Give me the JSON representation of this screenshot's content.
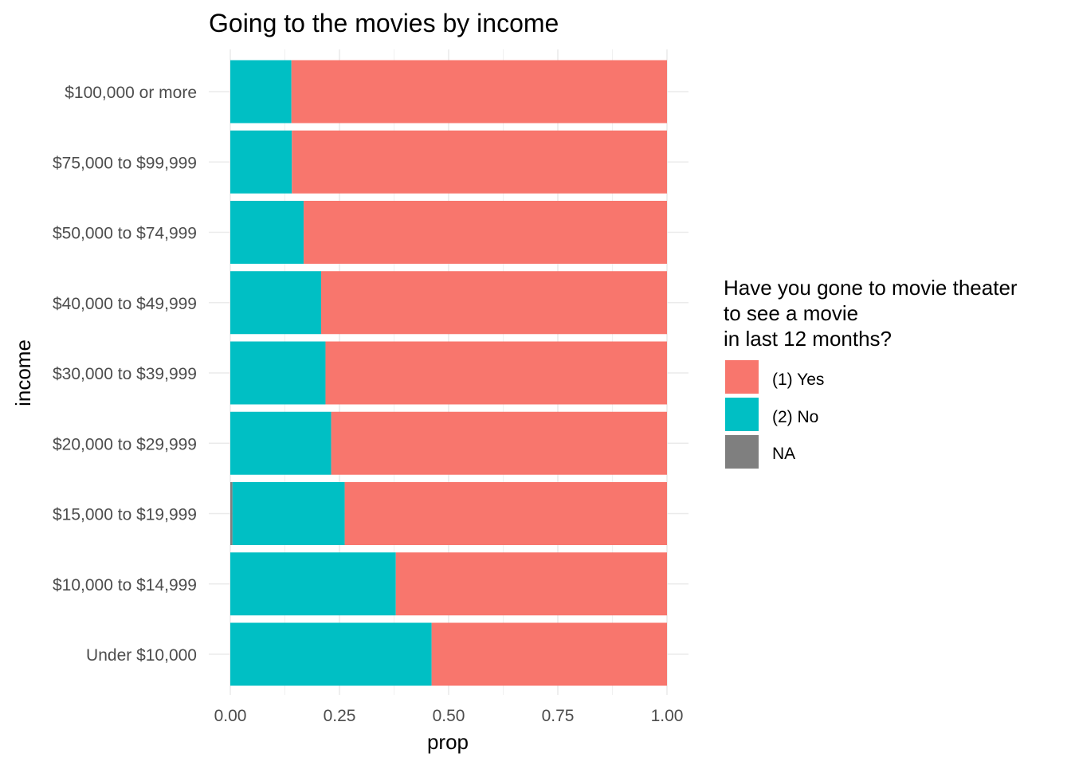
{
  "chart_data": {
    "type": "bar",
    "orientation": "horizontal",
    "stacked": true,
    "title": "Going to the movies by income",
    "xlabel": "prop",
    "ylabel": "income",
    "xlim": [
      0,
      1
    ],
    "xticks": [
      "0.00",
      "0.25",
      "0.50",
      "0.75",
      "1.00"
    ],
    "xtick_values": [
      0,
      0.25,
      0.5,
      0.75,
      1.0
    ],
    "grid": true,
    "categories": [
      "$100,000 or more",
      "$75,000 to $99,999",
      "$50,000 to $74,999",
      "$40,000 to $49,999",
      "$30,000 to $39,999",
      "$20,000 to $29,999",
      "$15,000 to $19,999",
      "$10,000 to $14,999",
      "Under $10,000"
    ],
    "series": [
      {
        "name": "NA",
        "color": "#7f7f7f",
        "values": [
          0.0,
          0.0,
          0.0,
          0.0,
          0.0,
          0.0,
          0.005,
          0.0,
          0.0
        ]
      },
      {
        "name": "(2) No",
        "color": "#00bfc4",
        "values": [
          0.14,
          0.141,
          0.168,
          0.208,
          0.218,
          0.231,
          0.257,
          0.379,
          0.461
        ]
      },
      {
        "name": "(1) Yes",
        "color": "#f8766d",
        "values": [
          0.86,
          0.859,
          0.832,
          0.792,
          0.782,
          0.769,
          0.738,
          0.621,
          0.539
        ]
      }
    ],
    "legend": {
      "title_lines": [
        "Have you gone to movie theater",
        "to see a movie",
        "in last 12 months?"
      ],
      "position": "right",
      "entries": [
        {
          "label": "(1) Yes",
          "color": "#f8766d"
        },
        {
          "label": "(2) No",
          "color": "#00bfc4"
        },
        {
          "label": "NA",
          "color": "#7f7f7f"
        }
      ]
    }
  }
}
